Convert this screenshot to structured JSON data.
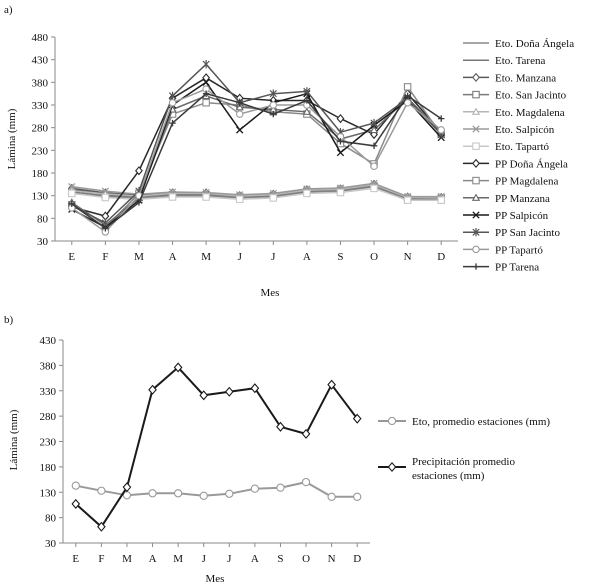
{
  "chart_data": [
    {
      "panel_label": "a)",
      "type": "line",
      "xlabel": "Mes",
      "ylabel": "Lámina (mm)",
      "ylim": [
        30,
        480
      ],
      "yticks": [
        30,
        80,
        130,
        180,
        230,
        280,
        330,
        380,
        430,
        480
      ],
      "categories": [
        "E",
        "F",
        "M",
        "A",
        "M",
        "J",
        "J",
        "A",
        "S",
        "O",
        "N",
        "D"
      ],
      "grid": false,
      "legend_position": "right",
      "series": [
        {
          "name": "Eto. Doña Ángela",
          "color": "#8a8a8a",
          "marker": "none",
          "values": [
            140,
            128,
            125,
            130,
            130,
            125,
            128,
            138,
            140,
            150,
            122,
            122
          ]
        },
        {
          "name": "Eto. Tarena",
          "color": "#777777",
          "marker": "none",
          "values": [
            143,
            133,
            128,
            133,
            133,
            128,
            131,
            141,
            143,
            153,
            124,
            124
          ]
        },
        {
          "name": "Eto. Manzana",
          "color": "#5a5a5a",
          "marker": "diamond",
          "values": [
            146,
            136,
            131,
            136,
            136,
            130,
            133,
            143,
            145,
            155,
            127,
            126
          ]
        },
        {
          "name": "Eto. San Jacinto",
          "color": "#7a7a7a",
          "marker": "square",
          "values": [
            138,
            130,
            127,
            132,
            132,
            127,
            130,
            140,
            142,
            151,
            124,
            124
          ]
        },
        {
          "name": "Eto. Magdalena",
          "color": "#b5b5b5",
          "marker": "triangle",
          "values": [
            141,
            134,
            129,
            135,
            135,
            129,
            132,
            142,
            144,
            154,
            126,
            125
          ]
        },
        {
          "name": "Eto. Salpicón",
          "color": "#9a9a9a",
          "marker": "x",
          "values": [
            150,
            140,
            133,
            138,
            137,
            132,
            135,
            145,
            147,
            157,
            128,
            128
          ]
        },
        {
          "name": "Eto. Tapartó",
          "color": "#c8c8c8",
          "marker": "square",
          "values": [
            135,
            126,
            122,
            127,
            127,
            122,
            125,
            135,
            137,
            146,
            120,
            120
          ]
        },
        {
          "name": "PP Doña Ángela",
          "color": "#2a2a2a",
          "marker": "diamond",
          "values": [
            105,
            85,
            185,
            345,
            390,
            345,
            340,
            340,
            300,
            265,
            355,
            270
          ]
        },
        {
          "name": "PP Magdalena",
          "color": "#8a8a8a",
          "marker": "square",
          "values": [
            110,
            60,
            135,
            310,
            335,
            330,
            315,
            310,
            245,
            200,
            370,
            265
          ]
        },
        {
          "name": "PP Manzana",
          "color": "#6a6a6a",
          "marker": "triangle",
          "values": [
            115,
            65,
            125,
            320,
            350,
            325,
            320,
            315,
            255,
            275,
            345,
            270
          ]
        },
        {
          "name": "PP Salpicón",
          "color": "#1a1a1a",
          "marker": "x",
          "values": [
            100,
            60,
            120,
            330,
            380,
            275,
            335,
            355,
            225,
            285,
            340,
            258
          ]
        },
        {
          "name": "PP San Jacinto",
          "color": "#555555",
          "marker": "asterisk",
          "values": [
            108,
            70,
            140,
            350,
            420,
            335,
            355,
            360,
            270,
            290,
            345,
            265
          ]
        },
        {
          "name": "PP Tapartó",
          "color": "#9a9a9a",
          "marker": "circle",
          "values": [
            103,
            50,
            130,
            335,
            365,
            310,
            330,
            330,
            260,
            195,
            335,
            275
          ]
        },
        {
          "name": "PP Tarena",
          "color": "#3a3a3a",
          "marker": "plus",
          "values": [
            112,
            58,
            115,
            290,
            355,
            335,
            310,
            340,
            250,
            240,
            350,
            300
          ]
        }
      ]
    },
    {
      "panel_label": "b)",
      "type": "line",
      "xlabel": "Mes",
      "ylabel": "Lámina (mm)",
      "ylim": [
        30,
        430
      ],
      "yticks": [
        30,
        80,
        130,
        180,
        230,
        280,
        330,
        380,
        430
      ],
      "categories": [
        "E",
        "F",
        "M",
        "A",
        "M",
        "J",
        "J",
        "A",
        "S",
        "O",
        "N",
        "D"
      ],
      "grid": false,
      "legend_position": "right",
      "series": [
        {
          "name": "Eto, promedio estaciones (mm)",
          "color": "#999999",
          "marker": "circle",
          "values": [
            143,
            133,
            124,
            128,
            128,
            123,
            127,
            137,
            139,
            150,
            121,
            121
          ]
        },
        {
          "name": "Precipitación promedio estaciones (mm)",
          "color": "#1a1a1a",
          "marker": "diamond",
          "values": [
            107,
            62,
            140,
            332,
            376,
            321,
            328,
            335,
            259,
            245,
            342,
            275
          ]
        }
      ]
    }
  ]
}
